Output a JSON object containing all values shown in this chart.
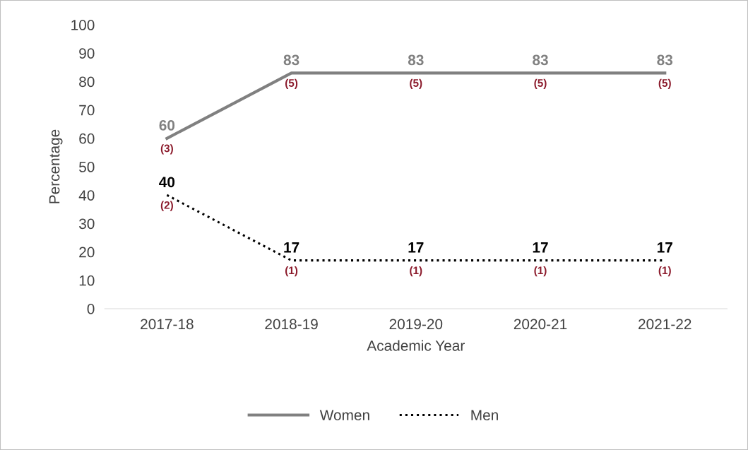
{
  "chart_data": {
    "type": "line",
    "xlabel": "Academic Year",
    "ylabel": "Percentage",
    "categories": [
      "2017-18",
      "2018-19",
      "2019-20",
      "2020-21",
      "2021-22"
    ],
    "series": [
      {
        "name": "Women",
        "color": "#808080",
        "values": [
          60,
          83,
          83,
          83,
          83
        ],
        "line_style": "solid"
      },
      {
        "name": "Men",
        "color": "#000000",
        "values": [
          40,
          17,
          17,
          17,
          17
        ],
        "line_style": "dotted"
      }
    ],
    "ylim": [
      0,
      100
    ],
    "yticks": [
      0,
      10,
      20,
      30,
      40,
      50,
      60,
      70,
      80,
      90,
      100
    ],
    "data_labels": true,
    "grid": false,
    "legend": "bottom",
    "annotations": [
      {
        "text": "(3)",
        "x": "2017-18",
        "y": 60
      },
      {
        "text": "(5)",
        "x": "2018-19",
        "y": 83
      },
      {
        "text": "(5)",
        "x": "2019-20",
        "y": 83
      },
      {
        "text": "(5)",
        "x": "2020-21",
        "y": 83
      },
      {
        "text": "(5)",
        "x": "2021-22",
        "y": 83
      },
      {
        "text": "(2)",
        "x": "2017-18",
        "y": 40
      },
      {
        "text": "(1)",
        "x": "2018-19",
        "y": 17
      },
      {
        "text": "(1)",
        "x": "2019-20",
        "y": 17
      },
      {
        "text": "(1)",
        "x": "2020-21",
        "y": 17
      },
      {
        "text": "(1)",
        "x": "2021-22",
        "y": 17
      }
    ]
  }
}
